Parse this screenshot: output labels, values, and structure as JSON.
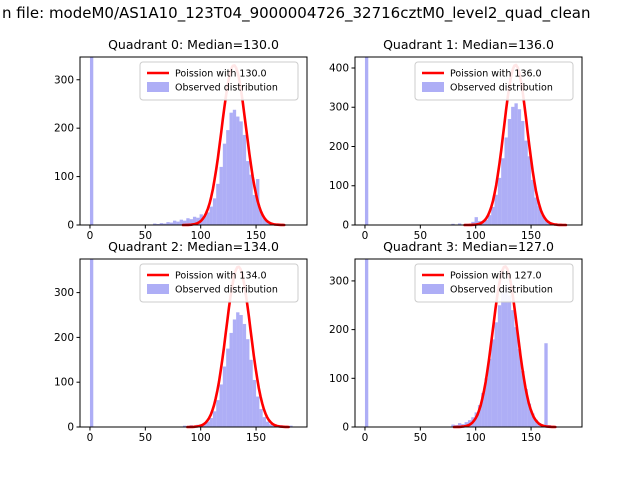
{
  "figure_title": "n file: modeM0/AS1A10_123T04_9000004726_32716cztM0_level2_quad_clean",
  "colors": {
    "bar_fill": "#6b6bef",
    "curve": "#ff0000",
    "axis": "#000000",
    "legend_border": "#cccccc",
    "background": "#ffffff"
  },
  "chart_data": [
    {
      "type": "bar",
      "subtype": "histogram-with-fit-line",
      "title": "Quadrant 0: Median=130.0",
      "median": 130.0,
      "legend": [
        "Poission with 130.0",
        "Observed distribution"
      ],
      "legend_position": "upper right",
      "x_ticks": [
        0,
        50,
        100,
        150
      ],
      "y_ticks": [
        0,
        100,
        200,
        300
      ],
      "xlim": [
        -9,
        196
      ],
      "ylim": [
        0,
        347
      ],
      "bin_width": 3,
      "bars": [
        [
          0,
          400
        ],
        [
          57,
          3
        ],
        [
          60,
          2
        ],
        [
          63,
          4
        ],
        [
          66,
          3
        ],
        [
          69,
          6
        ],
        [
          72,
          5
        ],
        [
          75,
          9
        ],
        [
          78,
          7
        ],
        [
          81,
          11
        ],
        [
          84,
          9
        ],
        [
          87,
          14
        ],
        [
          90,
          12
        ],
        [
          93,
          17
        ],
        [
          96,
          15
        ],
        [
          99,
          22
        ],
        [
          102,
          18
        ],
        [
          105,
          26
        ],
        [
          108,
          38
        ],
        [
          111,
          55
        ],
        [
          114,
          85
        ],
        [
          117,
          120
        ],
        [
          120,
          168
        ],
        [
          123,
          196
        ],
        [
          126,
          232
        ],
        [
          129,
          238
        ],
        [
          132,
          224
        ],
        [
          135,
          214
        ],
        [
          138,
          186
        ],
        [
          141,
          132
        ],
        [
          144,
          104
        ],
        [
          147,
          62
        ],
        [
          150,
          95
        ],
        [
          153,
          28
        ],
        [
          156,
          14
        ],
        [
          159,
          7
        ],
        [
          162,
          3
        ],
        [
          165,
          2
        ]
      ],
      "poisson_fit": {
        "mu": 130,
        "sigma": 11,
        "peak": 330
      }
    },
    {
      "type": "bar",
      "subtype": "histogram-with-fit-line",
      "title": "Quadrant 1: Median=136.0",
      "median": 136.0,
      "legend": [
        "Poission with 136.0",
        "Observed distribution"
      ],
      "legend_position": "upper right",
      "x_ticks": [
        0,
        50,
        100,
        150
      ],
      "y_ticks": [
        0,
        100,
        200,
        300,
        400
      ],
      "xlim": [
        -9,
        196
      ],
      "ylim": [
        0,
        428
      ],
      "bin_width": 3,
      "bars": [
        [
          0,
          500
        ],
        [
          78,
          3
        ],
        [
          84,
          4
        ],
        [
          90,
          3
        ],
        [
          96,
          8
        ],
        [
          99,
          20
        ],
        [
          102,
          10
        ],
        [
          105,
          6
        ],
        [
          108,
          13
        ],
        [
          111,
          25
        ],
        [
          114,
          46
        ],
        [
          117,
          77
        ],
        [
          120,
          120
        ],
        [
          123,
          170
        ],
        [
          126,
          223
        ],
        [
          129,
          270
        ],
        [
          132,
          301
        ],
        [
          135,
          310
        ],
        [
          138,
          295
        ],
        [
          141,
          265
        ],
        [
          144,
          215
        ],
        [
          147,
          175
        ],
        [
          150,
          115
        ],
        [
          153,
          70
        ],
        [
          156,
          48
        ],
        [
          159,
          25
        ],
        [
          162,
          12
        ],
        [
          165,
          6
        ],
        [
          168,
          3
        ]
      ],
      "poisson_fit": {
        "mu": 136,
        "sigma": 10.5,
        "peak": 408
      }
    },
    {
      "type": "bar",
      "subtype": "histogram-with-fit-line",
      "title": "Quadrant 2: Median=134.0",
      "median": 134.0,
      "legend": [
        "Poission with 134.0",
        "Observed distribution"
      ],
      "legend_position": "upper right",
      "x_ticks": [
        0,
        50,
        100,
        150
      ],
      "y_ticks": [
        0,
        100,
        200,
        300
      ],
      "xlim": [
        -9,
        196
      ],
      "ylim": [
        0,
        375
      ],
      "bin_width": 3,
      "bars": [
        [
          0,
          500
        ],
        [
          84,
          3
        ],
        [
          90,
          4
        ],
        [
          96,
          5
        ],
        [
          99,
          4
        ],
        [
          102,
          7
        ],
        [
          105,
          12
        ],
        [
          108,
          20
        ],
        [
          111,
          35
        ],
        [
          114,
          60
        ],
        [
          117,
          95
        ],
        [
          120,
          135
        ],
        [
          123,
          175
        ],
        [
          126,
          210
        ],
        [
          129,
          240
        ],
        [
          132,
          256
        ],
        [
          135,
          250
        ],
        [
          138,
          230
        ],
        [
          141,
          196
        ],
        [
          144,
          150
        ],
        [
          147,
          105
        ],
        [
          150,
          68
        ],
        [
          153,
          40
        ],
        [
          156,
          22
        ],
        [
          159,
          12
        ],
        [
          162,
          6
        ],
        [
          165,
          3
        ],
        [
          168,
          2
        ],
        [
          171,
          4
        ],
        [
          174,
          2
        ],
        [
          180,
          3
        ]
      ],
      "poisson_fit": {
        "mu": 134,
        "sigma": 11,
        "peak": 358
      }
    },
    {
      "type": "bar",
      "subtype": "histogram-with-fit-line",
      "title": "Quadrant 3: Median=127.0",
      "median": 127.0,
      "legend": [
        "Poission with 127.0",
        "Observed distribution"
      ],
      "legend_position": "upper right",
      "x_ticks": [
        0,
        50,
        100,
        150
      ],
      "y_ticks": [
        0,
        100,
        200,
        300
      ],
      "xlim": [
        -9,
        196
      ],
      "ylim": [
        0,
        345
      ],
      "bin_width": 3,
      "bars": [
        [
          0,
          450
        ],
        [
          78,
          5
        ],
        [
          81,
          4
        ],
        [
          84,
          8
        ],
        [
          87,
          6
        ],
        [
          90,
          10
        ],
        [
          93,
          14
        ],
        [
          96,
          20
        ],
        [
          99,
          30
        ],
        [
          102,
          45
        ],
        [
          105,
          70
        ],
        [
          108,
          100
        ],
        [
          111,
          140
        ],
        [
          114,
          180
        ],
        [
          117,
          215
        ],
        [
          120,
          250
        ],
        [
          123,
          275
        ],
        [
          126,
          286
        ],
        [
          129,
          270
        ],
        [
          132,
          240
        ],
        [
          135,
          205
        ],
        [
          138,
          160
        ],
        [
          141,
          115
        ],
        [
          144,
          78
        ],
        [
          147,
          48
        ],
        [
          150,
          28
        ],
        [
          153,
          15
        ],
        [
          156,
          8
        ],
        [
          159,
          5
        ],
        [
          162,
          172
        ],
        [
          165,
          4
        ]
      ],
      "poisson_fit": {
        "mu": 126.5,
        "sigma": 11,
        "peak": 330
      }
    }
  ]
}
